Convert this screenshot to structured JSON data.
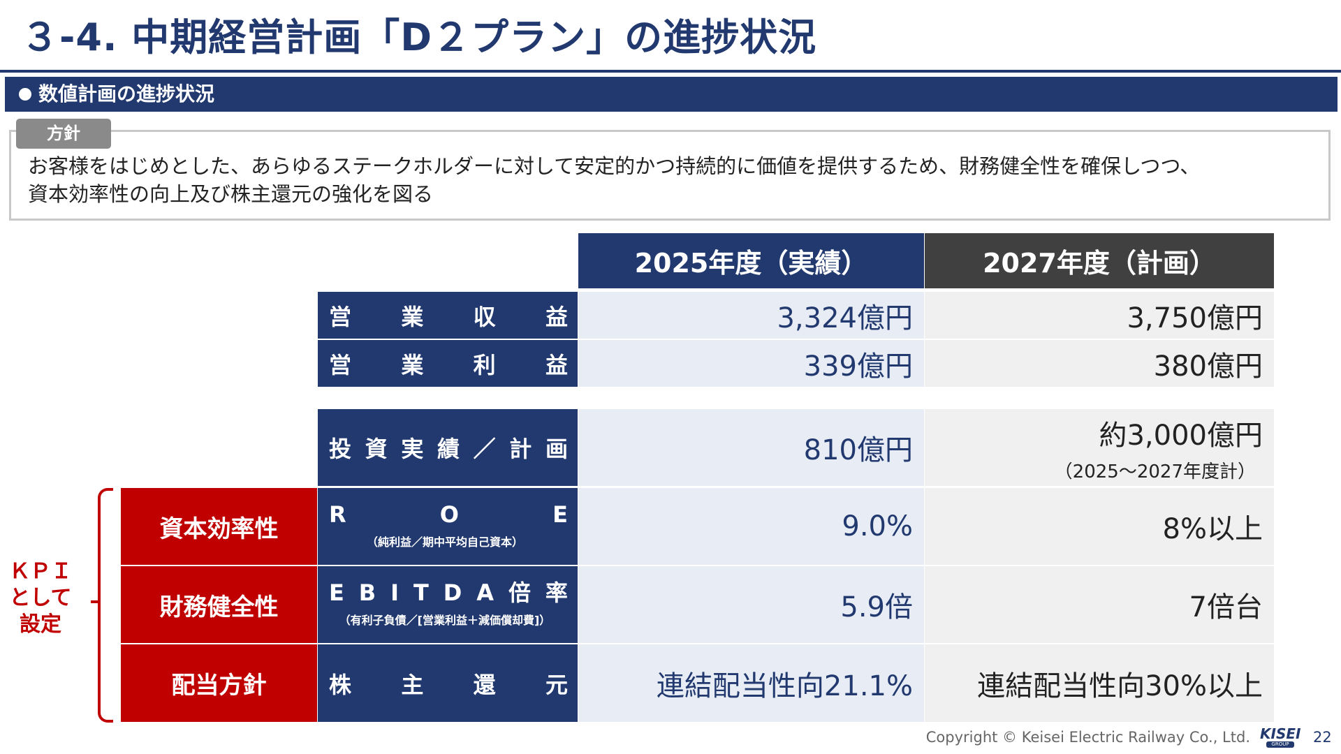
{
  "title": "３-4. 中期経営計画「D２プラン」の進捗状況",
  "section": "数値計画の進捗状況",
  "policy": {
    "tag": "方針",
    "text_line1": "お客様をはじめとした、あらゆるステークホルダーに対して安定的かつ持続的に価値を提供するため、財務健全性を確保しつつ、",
    "text_line2": "資本効率性の向上及び株主還元の強化を図る"
  },
  "table": {
    "col_2025": "2025年度（実績）",
    "col_2027": "2027年度（計画）",
    "rows": [
      {
        "label_chars": [
          "営",
          "業",
          "収",
          "益"
        ],
        "v2025": "3,324億円",
        "v2027": "3,750億円"
      },
      {
        "label_chars": [
          "営",
          "業",
          "利",
          "益"
        ],
        "v2025": "339億円",
        "v2027": "380億円"
      },
      {
        "label_chars": [
          "投",
          "資",
          "実",
          "績",
          "／",
          "計",
          "画"
        ],
        "v2025": "810億円",
        "v2027": "約3,000億円",
        "v2027_note": "（2025～2027年度計）"
      },
      {
        "kpi": "資本効率性",
        "label_chars": [
          "R",
          "O",
          "E"
        ],
        "label_sub": "（純利益／期中平均自己資本）",
        "v2025": "9.0%",
        "v2027": "8%以上"
      },
      {
        "kpi": "財務健全性",
        "label_chars": [
          "E",
          "B",
          "I",
          "T",
          "D",
          "A",
          "倍",
          "率"
        ],
        "label_sub": "（有利子負債／[営業利益＋減価償却費]）",
        "v2025": "5.9倍",
        "v2027": "7倍台"
      },
      {
        "kpi": "配当方針",
        "label_chars": [
          "株",
          "主",
          "還",
          "元"
        ],
        "v2025": "連結配当性向21.1%",
        "v2027": "連結配当性向30%以上"
      }
    ]
  },
  "kpi_note": {
    "line1": "ＫＰＩ",
    "line2": "として",
    "line3": "設定"
  },
  "footer": {
    "copyright": "Copyright ©  Keisei Electric Railway Co., Ltd.",
    "logo_word": "KISEI",
    "logo_sub": "GROUP",
    "page": "22"
  }
}
